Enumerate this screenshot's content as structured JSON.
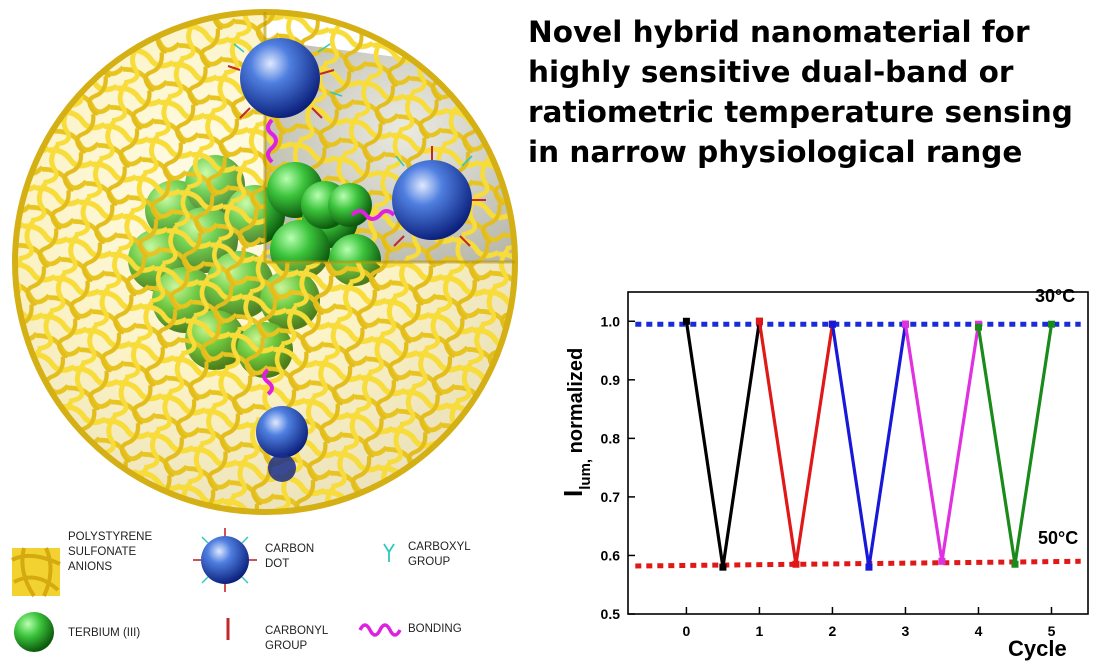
{
  "headline": {
    "lines": [
      "Novel hybrid nanomaterial for",
      "highly sensitive dual-band or",
      "ratiometric temperature sensing",
      "in narrow physiological range"
    ]
  },
  "legend": {
    "items": [
      {
        "icon": "polystyrene-sulfonate-icon",
        "lines": [
          "POLYSTYRENE",
          "SULFONATE",
          "ANIONS"
        ]
      },
      {
        "icon": "carbon-dot-icon",
        "lines": [
          "CARBON",
          "DOT"
        ]
      },
      {
        "icon": "carboxyl-group-icon",
        "lines": [
          "CARBOXYL",
          "GROUP"
        ]
      },
      {
        "icon": "terbium-icon",
        "lines": [
          "TERBIUM (III)"
        ]
      },
      {
        "icon": "carbonyl-group-icon",
        "lines": [
          "CARBONYL",
          "GROUP"
        ]
      },
      {
        "icon": "bonding-icon",
        "lines": [
          "BONDING"
        ]
      }
    ]
  },
  "colors": {
    "shell": "#f2d230",
    "terbium": "#2fb52f",
    "carbon_dot": "#1d3fb0",
    "bonding": "#e020e0",
    "carbonyl": "#c0282c",
    "carboxyl": "#30c8c0"
  },
  "chart_data": {
    "type": "line",
    "xlabel": "Cycle",
    "ylabel_main": "I",
    "ylabel_sub": "lum,",
    "ylabel_rest": " normalized",
    "xlim": [
      -0.8,
      5.5
    ],
    "ylim": [
      0.5,
      1.05
    ],
    "xticks": [
      0,
      1,
      2,
      3,
      4,
      5
    ],
    "yticks": [
      0.5,
      0.6,
      0.7,
      0.8,
      0.9,
      1.0
    ],
    "ytick_labels": [
      "0.5",
      "0.6",
      "0.7",
      "0.8",
      "0.9",
      "1.0"
    ],
    "series": [
      {
        "color": "#000000",
        "x": [
          0,
          0.5,
          1
        ],
        "y": [
          1.0,
          0.58,
          1.0
        ]
      },
      {
        "color": "#e01818",
        "x": [
          1,
          1.5,
          2
        ],
        "y": [
          1.0,
          0.585,
          0.995
        ]
      },
      {
        "color": "#1818d8",
        "x": [
          2,
          2.5,
          3
        ],
        "y": [
          0.995,
          0.58,
          0.995
        ]
      },
      {
        "color": "#e030e0",
        "x": [
          3,
          3.5,
          4
        ],
        "y": [
          0.995,
          0.59,
          0.995
        ]
      },
      {
        "color": "#1a8a1a",
        "x": [
          4,
          4.5,
          5
        ],
        "y": [
          0.99,
          0.585,
          0.995
        ]
      }
    ],
    "reference_lines": [
      {
        "label": "30°C",
        "color": "#1a2bd8",
        "x": [
          -0.7,
          5.4
        ],
        "y": [
          0.995,
          0.995
        ]
      },
      {
        "label": "50°C",
        "color": "#e01818",
        "x": [
          -0.7,
          5.4
        ],
        "y": [
          0.582,
          0.59
        ]
      }
    ]
  }
}
